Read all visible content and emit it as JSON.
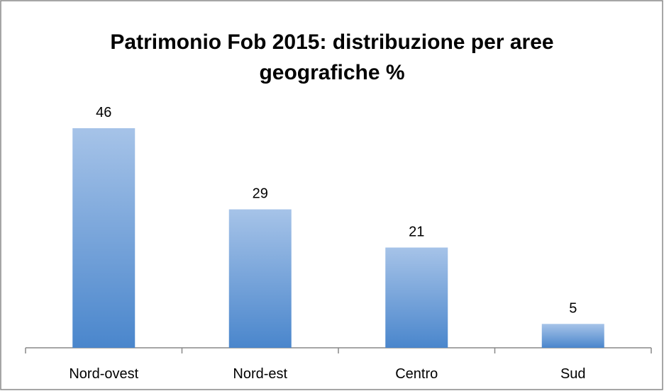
{
  "chart_data": {
    "type": "bar",
    "title": "Patrimonio Fob 2015: distribuzione per aree geografiche %",
    "categories": [
      "Nord-ovest",
      "Nord-est",
      "Centro",
      "Sud"
    ],
    "values": [
      46,
      29,
      21,
      5
    ],
    "color": "#4a86cc"
  }
}
